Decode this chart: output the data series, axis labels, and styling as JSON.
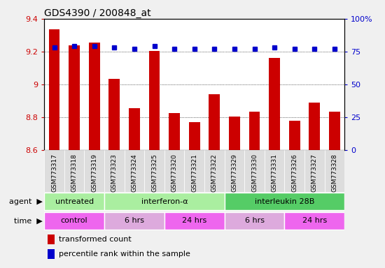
{
  "title": "GDS4390 / 200848_at",
  "samples": [
    "GSM773317",
    "GSM773318",
    "GSM773319",
    "GSM773323",
    "GSM773324",
    "GSM773325",
    "GSM773320",
    "GSM773321",
    "GSM773322",
    "GSM773329",
    "GSM773330",
    "GSM773331",
    "GSM773326",
    "GSM773327",
    "GSM773328"
  ],
  "red_values": [
    9.335,
    9.24,
    9.255,
    9.035,
    8.855,
    9.205,
    8.825,
    8.77,
    8.94,
    8.805,
    8.835,
    9.16,
    8.78,
    8.89,
    8.835
  ],
  "blue_values": [
    78,
    79,
    79,
    78,
    77,
    79,
    77,
    77,
    77,
    77,
    77,
    78,
    77,
    77,
    77
  ],
  "ylim_left": [
    8.6,
    9.4
  ],
  "ylim_right": [
    0,
    100
  ],
  "yticks_left": [
    8.6,
    8.8,
    9.0,
    9.2,
    9.4
  ],
  "yticks_left_labels": [
    "8.6",
    "8.8",
    "9",
    "9.2",
    "9.4"
  ],
  "yticks_right": [
    0,
    25,
    50,
    75,
    100
  ],
  "yticks_right_labels": [
    "0",
    "25",
    "50",
    "75",
    "100%"
  ],
  "agent_groups": [
    {
      "label": "untreated",
      "color": "#AAEEA0",
      "start": 0,
      "end": 3
    },
    {
      "label": "interferon-α",
      "color": "#AAEEA0",
      "start": 3,
      "end": 9
    },
    {
      "label": "interleukin 28B",
      "color": "#55CC66",
      "start": 9,
      "end": 15
    }
  ],
  "time_groups": [
    {
      "label": "control",
      "color": "#EE66EE",
      "start": 0,
      "end": 3
    },
    {
      "label": "6 hrs",
      "color": "#DDAADD",
      "start": 3,
      "end": 6
    },
    {
      "label": "24 hrs",
      "color": "#EE66EE",
      "start": 6,
      "end": 9
    },
    {
      "label": "6 hrs",
      "color": "#DDAADD",
      "start": 9,
      "end": 12
    },
    {
      "label": "24 hrs",
      "color": "#EE66EE",
      "start": 12,
      "end": 15
    }
  ],
  "bar_color": "#CC0000",
  "dot_color": "#0000CC",
  "xtick_bg": "#DDDDDD",
  "plot_bg": "#FFFFFF"
}
